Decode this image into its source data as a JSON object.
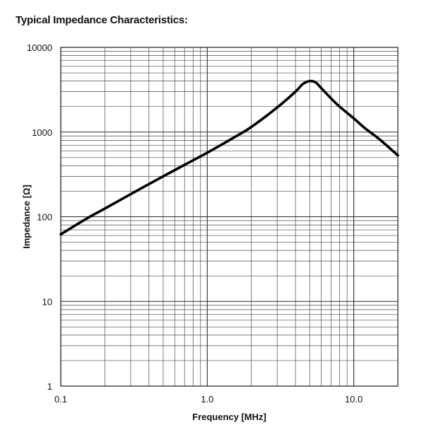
{
  "chart_data": {
    "type": "line",
    "title": "Typical Impedance Characteristics:",
    "xlabel": "Frequency [MHz]",
    "ylabel": "Impedance [Ω]",
    "x_scale": "log",
    "y_scale": "log",
    "xlim": [
      0.1,
      20
    ],
    "ylim": [
      1,
      10000
    ],
    "x_tick_labels": [
      {
        "value": 0.1,
        "label": "0.1"
      },
      {
        "value": 1,
        "label": "1.0"
      },
      {
        "value": 10,
        "label": "10.0"
      }
    ],
    "y_tick_labels": [
      {
        "value": 1,
        "label": "1"
      },
      {
        "value": 10,
        "label": "10"
      },
      {
        "value": 100,
        "label": "100"
      },
      {
        "value": 1000,
        "label": "1000"
      },
      {
        "value": 10000,
        "label": "10000"
      }
    ],
    "grid": true,
    "series": [
      {
        "color": "#000000",
        "x": [
          0.1,
          0.15,
          0.2,
          0.3,
          0.5,
          0.7,
          1.0,
          1.5,
          2.0,
          3.0,
          4.0,
          4.5,
          5.0,
          5.5,
          6.0,
          7.0,
          8.0,
          10.0,
          12.0,
          15.0,
          20.0
        ],
        "y": [
          62,
          95,
          125,
          185,
          300,
          410,
          570,
          850,
          1150,
          1950,
          3000,
          3700,
          4000,
          3850,
          3300,
          2500,
          2000,
          1450,
          1100,
          820,
          530
        ]
      }
    ]
  }
}
